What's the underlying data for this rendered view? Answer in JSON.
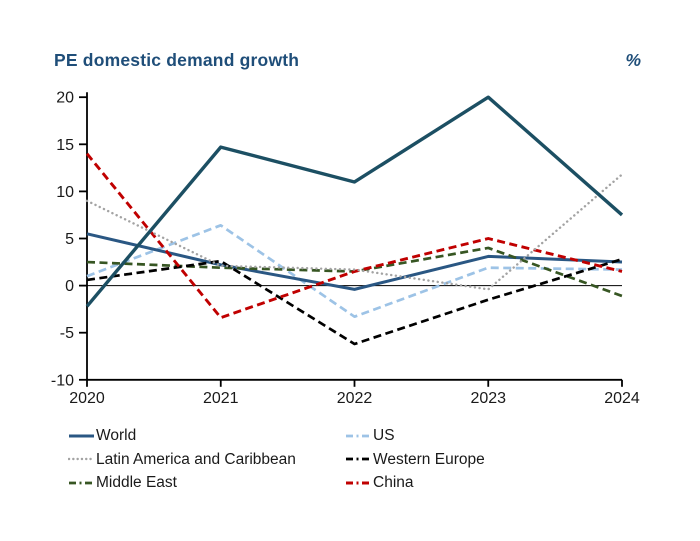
{
  "title": "PE domestic demand growth",
  "unit_label": "%",
  "colors": {
    "title_text": "#1F4E79",
    "axis": "#000000",
    "tick_text": "#1a1a1a",
    "background": "#ffffff"
  },
  "chart_data": {
    "type": "line",
    "title": "PE domestic demand growth",
    "unit_label": "%",
    "x_labels": [
      "2020",
      "2021",
      "2022",
      "2023",
      "2024"
    ],
    "ylim": [
      -10,
      20
    ],
    "y_ticks": [
      20,
      15,
      10,
      5,
      0,
      -5,
      -10
    ],
    "grid": false,
    "zero_line": true,
    "legend_position": "bottom, two columns",
    "series": [
      {
        "name": "World",
        "color": "#2A5783",
        "line_style": "solid",
        "width": 3,
        "values": [
          5.5,
          2.2,
          -0.4,
          3.1,
          2.5
        ],
        "in_legend": true
      },
      {
        "name": "US",
        "color": "#9DC3E6",
        "line_style": "dashed",
        "width": 2.7,
        "values": [
          1.0,
          6.4,
          -3.3,
          1.9,
          1.7
        ],
        "in_legend": true
      },
      {
        "name": "Latin America and Caribbean",
        "color": "#A3A3A3",
        "line_style": "dotted",
        "width": 2.4,
        "values": [
          9.0,
          2.1,
          1.7,
          -0.4,
          11.8
        ],
        "in_legend": true
      },
      {
        "name": "Western Europe",
        "color": "#000000",
        "line_style": "dashed",
        "width": 2.7,
        "values": [
          0.6,
          2.6,
          -6.2,
          -1.5,
          2.8
        ],
        "in_legend": true
      },
      {
        "name": "Middle East",
        "color": "#375623",
        "line_style": "dashed",
        "width": 2.7,
        "values": [
          2.5,
          1.9,
          1.5,
          4.0,
          -1.1
        ],
        "in_legend": true
      },
      {
        "name": "China",
        "color": "#C00000",
        "line_style": "dashed",
        "width": 2.9,
        "values": [
          14.0,
          -3.4,
          1.5,
          5.0,
          1.5
        ],
        "in_legend": true
      },
      {
        "name": "",
        "color": "#1C4F63",
        "line_style": "solid",
        "width": 3.4,
        "values": [
          -2.2,
          14.7,
          11.0,
          20.0,
          7.5
        ],
        "in_legend": false
      }
    ]
  }
}
